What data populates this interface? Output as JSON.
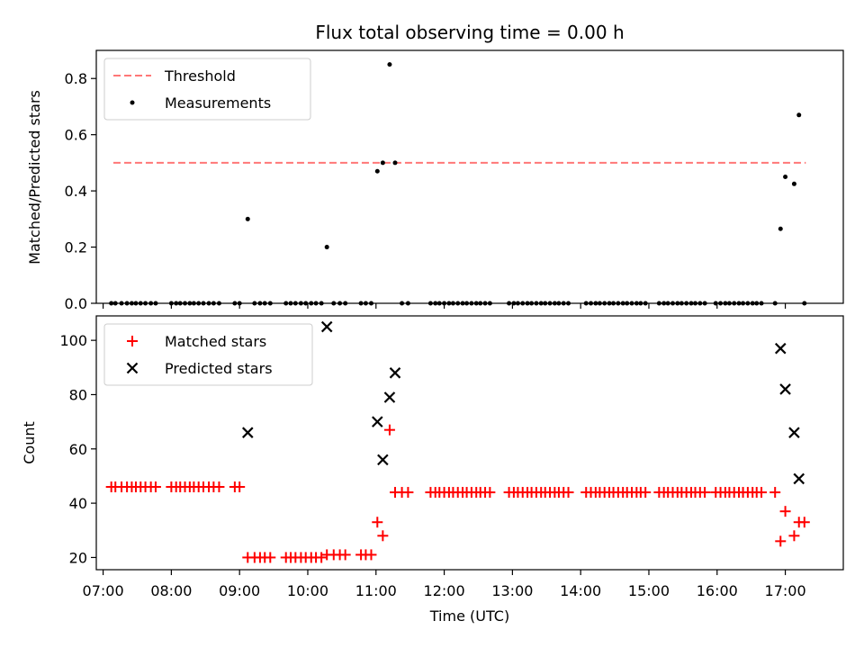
{
  "title": "Flux total observing time = 0.00 h",
  "colors": {
    "threshold": "#ff7777",
    "matched": "#ff0000",
    "predicted": "#000000",
    "measurement": "#000000"
  },
  "chart_data": [
    {
      "type": "scatter",
      "panel": "top",
      "ylabel": "Matched/Predicted stars",
      "ylim": [
        0,
        0.9
      ],
      "yticks": [
        0.0,
        0.2,
        0.4,
        0.6,
        0.8
      ],
      "yticklabels": [
        "0.0",
        "0.2",
        "0.4",
        "0.6",
        "0.8"
      ],
      "xlim": [
        6.9,
        17.85
      ],
      "legend_position": "top-left",
      "threshold": {
        "name": "Threshold",
        "value": 0.5,
        "x_range": [
          7.15,
          17.3
        ]
      },
      "measurements": {
        "name": "Measurements",
        "points": [
          [
            7.12,
            0
          ],
          [
            7.18,
            0
          ],
          [
            7.27,
            0
          ],
          [
            7.35,
            0
          ],
          [
            7.42,
            0
          ],
          [
            7.48,
            0
          ],
          [
            7.55,
            0
          ],
          [
            7.62,
            0
          ],
          [
            7.7,
            0
          ],
          [
            7.77,
            0
          ],
          [
            8.0,
            0
          ],
          [
            8.07,
            0
          ],
          [
            8.13,
            0
          ],
          [
            8.2,
            0
          ],
          [
            8.27,
            0
          ],
          [
            8.33,
            0
          ],
          [
            8.4,
            0
          ],
          [
            8.47,
            0
          ],
          [
            8.55,
            0
          ],
          [
            8.62,
            0
          ],
          [
            8.7,
            0
          ],
          [
            8.93,
            0
          ],
          [
            9.0,
            0
          ],
          [
            9.12,
            0.3
          ],
          [
            9.22,
            0
          ],
          [
            9.3,
            0
          ],
          [
            9.37,
            0
          ],
          [
            9.45,
            0
          ],
          [
            9.68,
            0
          ],
          [
            9.75,
            0
          ],
          [
            9.82,
            0
          ],
          [
            9.9,
            0
          ],
          [
            9.97,
            0
          ],
          [
            10.05,
            0
          ],
          [
            10.12,
            0
          ],
          [
            10.2,
            0
          ],
          [
            10.28,
            0.2
          ],
          [
            10.38,
            0
          ],
          [
            10.47,
            0
          ],
          [
            10.55,
            0
          ],
          [
            10.78,
            0
          ],
          [
            10.85,
            0
          ],
          [
            10.93,
            0
          ],
          [
            11.02,
            0.47
          ],
          [
            11.1,
            0.5
          ],
          [
            11.2,
            0.85
          ],
          [
            11.28,
            0.5
          ],
          [
            11.38,
            0
          ],
          [
            11.47,
            0
          ],
          [
            11.8,
            0
          ],
          [
            11.87,
            0
          ],
          [
            11.93,
            0
          ],
          [
            12.0,
            0
          ],
          [
            12.07,
            0
          ],
          [
            12.13,
            0
          ],
          [
            12.2,
            0
          ],
          [
            12.27,
            0
          ],
          [
            12.33,
            0
          ],
          [
            12.4,
            0
          ],
          [
            12.47,
            0
          ],
          [
            12.53,
            0
          ],
          [
            12.6,
            0
          ],
          [
            12.67,
            0
          ],
          [
            12.95,
            0
          ],
          [
            13.02,
            0
          ],
          [
            13.08,
            0
          ],
          [
            13.15,
            0
          ],
          [
            13.22,
            0
          ],
          [
            13.28,
            0
          ],
          [
            13.35,
            0
          ],
          [
            13.42,
            0
          ],
          [
            13.48,
            0
          ],
          [
            13.55,
            0
          ],
          [
            13.62,
            0
          ],
          [
            13.68,
            0
          ],
          [
            13.75,
            0
          ],
          [
            13.82,
            0
          ],
          [
            14.08,
            0
          ],
          [
            14.15,
            0
          ],
          [
            14.22,
            0
          ],
          [
            14.28,
            0
          ],
          [
            14.35,
            0
          ],
          [
            14.42,
            0
          ],
          [
            14.48,
            0
          ],
          [
            14.55,
            0
          ],
          [
            14.62,
            0
          ],
          [
            14.68,
            0
          ],
          [
            14.75,
            0
          ],
          [
            14.82,
            0
          ],
          [
            14.88,
            0
          ],
          [
            14.95,
            0
          ],
          [
            15.15,
            0
          ],
          [
            15.22,
            0
          ],
          [
            15.28,
            0
          ],
          [
            15.35,
            0
          ],
          [
            15.42,
            0
          ],
          [
            15.48,
            0
          ],
          [
            15.55,
            0
          ],
          [
            15.62,
            0
          ],
          [
            15.68,
            0
          ],
          [
            15.75,
            0
          ],
          [
            15.82,
            0
          ],
          [
            15.98,
            0
          ],
          [
            16.05,
            0
          ],
          [
            16.12,
            0
          ],
          [
            16.18,
            0
          ],
          [
            16.25,
            0
          ],
          [
            16.32,
            0
          ],
          [
            16.38,
            0
          ],
          [
            16.45,
            0
          ],
          [
            16.52,
            0
          ],
          [
            16.58,
            0
          ],
          [
            16.65,
            0
          ],
          [
            16.85,
            0
          ],
          [
            16.93,
            0.265
          ],
          [
            17.0,
            0.45
          ],
          [
            17.13,
            0.425
          ],
          [
            17.2,
            0.67
          ],
          [
            17.28,
            0
          ]
        ]
      }
    },
    {
      "type": "scatter",
      "panel": "bottom",
      "xlabel": "Time (UTC)",
      "ylabel": "Count",
      "ylim": [
        15.5,
        109
      ],
      "yticks": [
        20,
        40,
        60,
        80,
        100
      ],
      "yticklabels": [
        "20",
        "40",
        "60",
        "80",
        "100"
      ],
      "xlim": [
        6.9,
        17.85
      ],
      "xticks": [
        7,
        8,
        9,
        10,
        11,
        12,
        13,
        14,
        15,
        16,
        17
      ],
      "xticklabels": [
        "07:00",
        "08:00",
        "09:00",
        "10:00",
        "11:00",
        "12:00",
        "13:00",
        "14:00",
        "15:00",
        "16:00",
        "17:00"
      ],
      "legend_position": "top-left",
      "series": [
        {
          "name": "Matched stars",
          "marker": "plus",
          "points": [
            [
              7.12,
              46
            ],
            [
              7.18,
              46
            ],
            [
              7.27,
              46
            ],
            [
              7.35,
              46
            ],
            [
              7.42,
              46
            ],
            [
              7.48,
              46
            ],
            [
              7.55,
              46
            ],
            [
              7.62,
              46
            ],
            [
              7.7,
              46
            ],
            [
              7.77,
              46
            ],
            [
              8.0,
              46
            ],
            [
              8.07,
              46
            ],
            [
              8.13,
              46
            ],
            [
              8.2,
              46
            ],
            [
              8.27,
              46
            ],
            [
              8.33,
              46
            ],
            [
              8.4,
              46
            ],
            [
              8.47,
              46
            ],
            [
              8.55,
              46
            ],
            [
              8.62,
              46
            ],
            [
              8.7,
              46
            ],
            [
              8.93,
              46
            ],
            [
              9.0,
              46
            ],
            [
              9.12,
              20
            ],
            [
              9.22,
              20
            ],
            [
              9.3,
              20
            ],
            [
              9.37,
              20
            ],
            [
              9.45,
              20
            ],
            [
              9.68,
              20
            ],
            [
              9.75,
              20
            ],
            [
              9.82,
              20
            ],
            [
              9.9,
              20
            ],
            [
              9.97,
              20
            ],
            [
              10.05,
              20
            ],
            [
              10.12,
              20
            ],
            [
              10.2,
              20
            ],
            [
              10.28,
              21
            ],
            [
              10.38,
              21
            ],
            [
              10.47,
              21
            ],
            [
              10.55,
              21
            ],
            [
              10.78,
              21
            ],
            [
              10.85,
              21
            ],
            [
              10.93,
              21
            ],
            [
              11.02,
              33
            ],
            [
              11.1,
              28
            ],
            [
              11.2,
              67
            ],
            [
              11.28,
              44
            ],
            [
              11.38,
              44
            ],
            [
              11.47,
              44
            ],
            [
              11.8,
              44
            ],
            [
              11.87,
              44
            ],
            [
              11.93,
              44
            ],
            [
              12.0,
              44
            ],
            [
              12.07,
              44
            ],
            [
              12.13,
              44
            ],
            [
              12.2,
              44
            ],
            [
              12.27,
              44
            ],
            [
              12.33,
              44
            ],
            [
              12.4,
              44
            ],
            [
              12.47,
              44
            ],
            [
              12.53,
              44
            ],
            [
              12.6,
              44
            ],
            [
              12.67,
              44
            ],
            [
              12.95,
              44
            ],
            [
              13.02,
              44
            ],
            [
              13.08,
              44
            ],
            [
              13.15,
              44
            ],
            [
              13.22,
              44
            ],
            [
              13.28,
              44
            ],
            [
              13.35,
              44
            ],
            [
              13.42,
              44
            ],
            [
              13.48,
              44
            ],
            [
              13.55,
              44
            ],
            [
              13.62,
              44
            ],
            [
              13.68,
              44
            ],
            [
              13.75,
              44
            ],
            [
              13.82,
              44
            ],
            [
              14.08,
              44
            ],
            [
              14.15,
              44
            ],
            [
              14.22,
              44
            ],
            [
              14.28,
              44
            ],
            [
              14.35,
              44
            ],
            [
              14.42,
              44
            ],
            [
              14.48,
              44
            ],
            [
              14.55,
              44
            ],
            [
              14.62,
              44
            ],
            [
              14.68,
              44
            ],
            [
              14.75,
              44
            ],
            [
              14.82,
              44
            ],
            [
              14.88,
              44
            ],
            [
              14.95,
              44
            ],
            [
              15.15,
              44
            ],
            [
              15.22,
              44
            ],
            [
              15.28,
              44
            ],
            [
              15.35,
              44
            ],
            [
              15.42,
              44
            ],
            [
              15.48,
              44
            ],
            [
              15.55,
              44
            ],
            [
              15.62,
              44
            ],
            [
              15.68,
              44
            ],
            [
              15.75,
              44
            ],
            [
              15.82,
              44
            ],
            [
              15.98,
              44
            ],
            [
              16.05,
              44
            ],
            [
              16.12,
              44
            ],
            [
              16.18,
              44
            ],
            [
              16.25,
              44
            ],
            [
              16.32,
              44
            ],
            [
              16.38,
              44
            ],
            [
              16.45,
              44
            ],
            [
              16.52,
              44
            ],
            [
              16.58,
              44
            ],
            [
              16.65,
              44
            ],
            [
              16.85,
              44
            ],
            [
              16.93,
              26
            ],
            [
              17.0,
              37
            ],
            [
              17.13,
              28
            ],
            [
              17.2,
              33
            ],
            [
              17.28,
              33
            ]
          ]
        },
        {
          "name": "Predicted stars",
          "marker": "x",
          "points": [
            [
              9.12,
              66
            ],
            [
              10.28,
              105
            ],
            [
              11.02,
              70
            ],
            [
              11.1,
              56
            ],
            [
              11.2,
              79
            ],
            [
              11.28,
              88
            ],
            [
              16.93,
              97
            ],
            [
              17.0,
              82
            ],
            [
              17.13,
              66
            ],
            [
              17.2,
              49
            ]
          ]
        }
      ]
    }
  ]
}
